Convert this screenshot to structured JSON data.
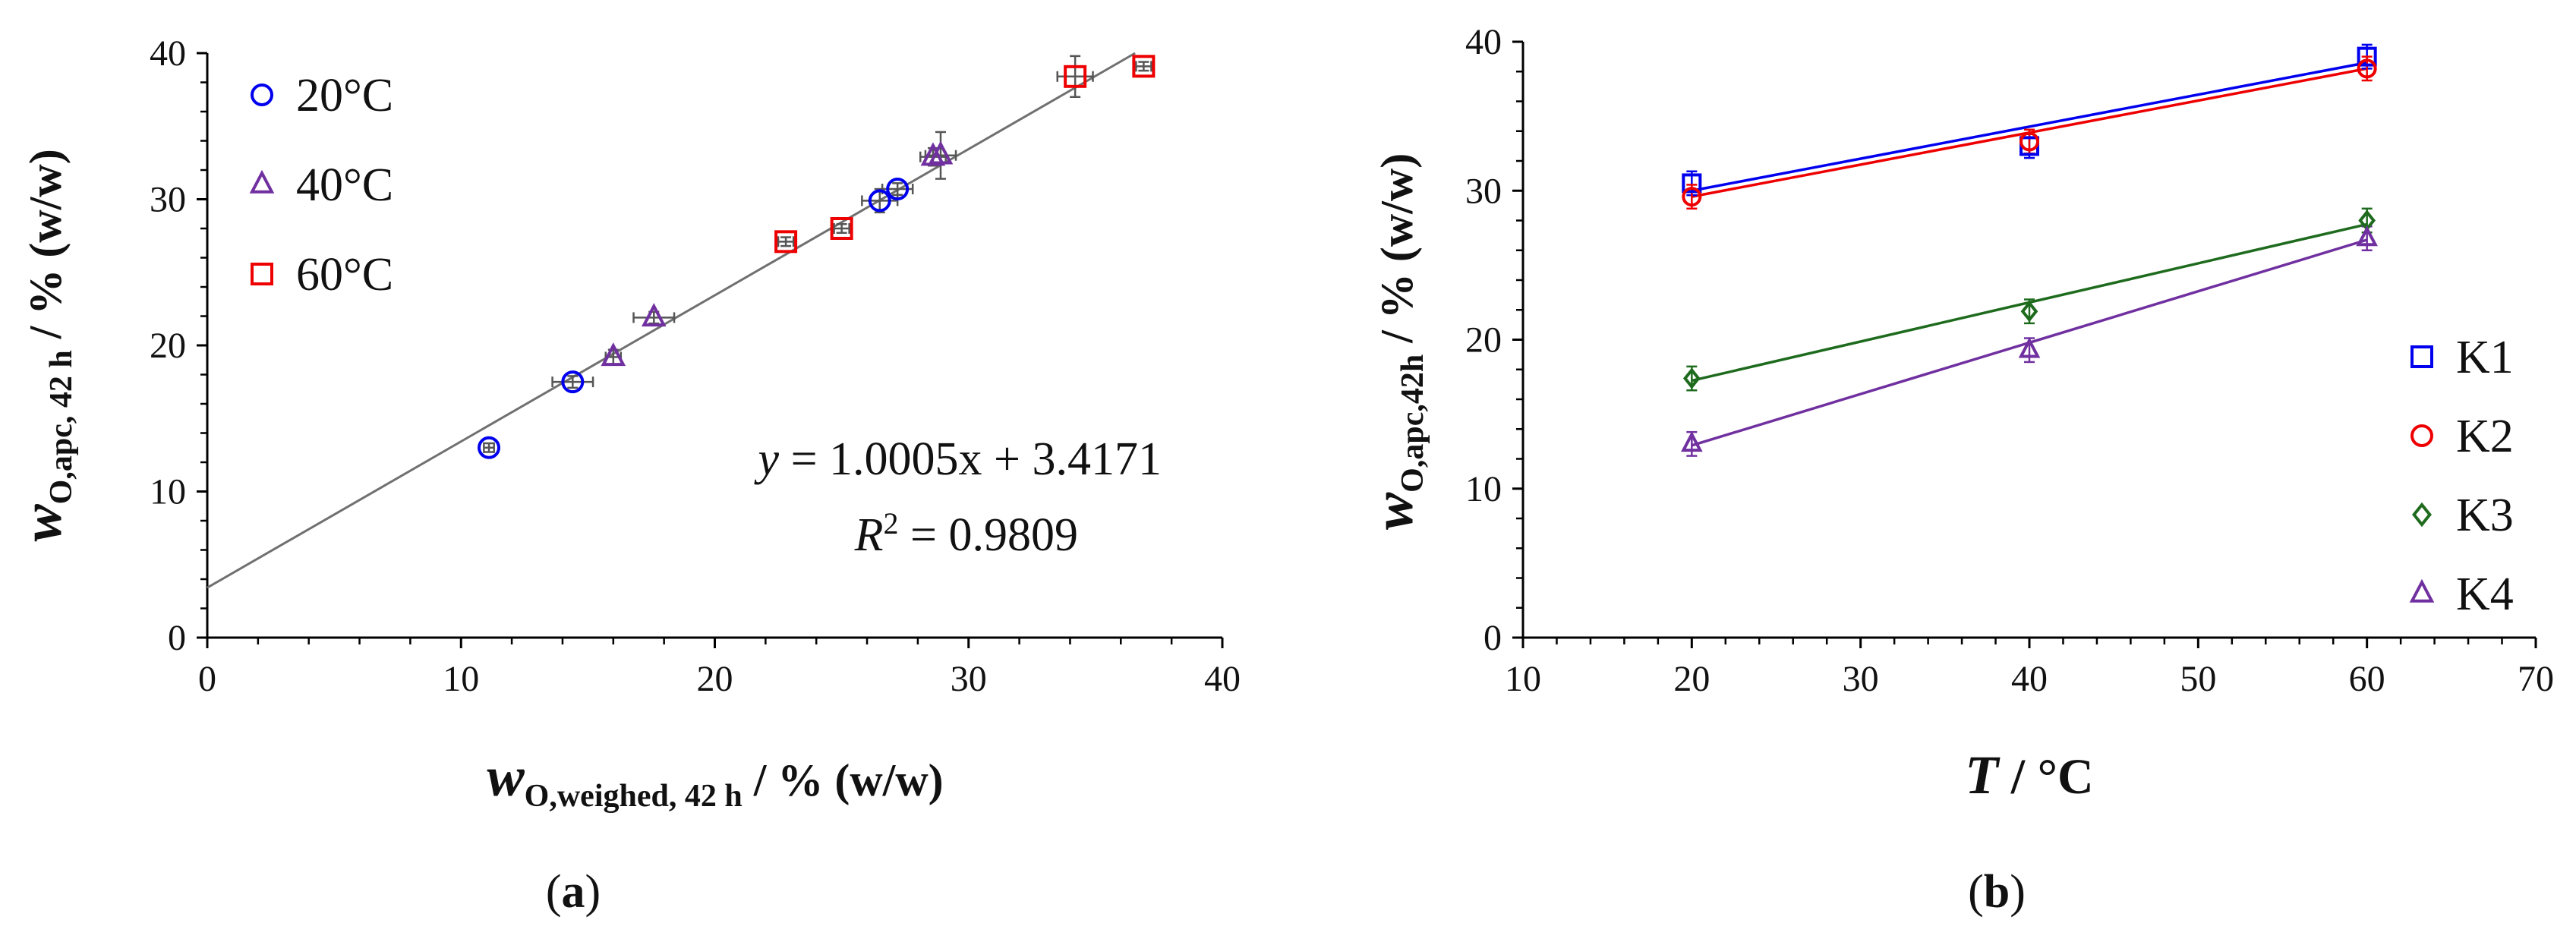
{
  "chart_data": [
    {
      "panel": "a",
      "panel_label": "a",
      "type": "scatter",
      "xlim": [
        0,
        40
      ],
      "ylim": [
        0,
        40
      ],
      "xticks": [
        0,
        10,
        20,
        30,
        40
      ],
      "yticks": [
        0,
        10,
        20,
        30,
        40
      ],
      "xlabel": {
        "var": "w",
        "sub": "O,weighed, 42 h",
        "unit": " / % (w/w)"
      },
      "ylabel": {
        "var": "w",
        "sub": "O,apc, 42 h",
        "unit": " / % (w/w)"
      },
      "series": [
        {
          "name": "20°C",
          "marker": "circle",
          "color": "#0000ee",
          "points": [
            {
              "x": 11.1,
              "y": 13.0,
              "xerr": 0.2,
              "yerr": 0.3
            },
            {
              "x": 14.4,
              "y": 17.5,
              "xerr": 0.8,
              "yerr": 0.4
            },
            {
              "x": 26.5,
              "y": 29.9,
              "xerr": 0.7,
              "yerr": 0.8
            },
            {
              "x": 27.2,
              "y": 30.7,
              "xerr": 0.6,
              "yerr": 0.4
            }
          ]
        },
        {
          "name": "40°C",
          "marker": "triangle",
          "color": "#7030a0",
          "points": [
            {
              "x": 16.0,
              "y": 19.2,
              "xerr": 0.3,
              "yerr": 0.5
            },
            {
              "x": 17.6,
              "y": 21.9,
              "xerr": 0.8,
              "yerr": 0.4
            },
            {
              "x": 28.6,
              "y": 32.9,
              "xerr": 0.5,
              "yerr": 0.6
            },
            {
              "x": 28.9,
              "y": 33.0,
              "xerr": 0.6,
              "yerr": 1.6
            }
          ]
        },
        {
          "name": "60°C",
          "marker": "square",
          "color": "#ee0000",
          "points": [
            {
              "x": 22.8,
              "y": 27.1,
              "xerr": 0.3,
              "yerr": 0.3
            },
            {
              "x": 25.0,
              "y": 28.0,
              "xerr": 0.3,
              "yerr": 0.3
            },
            {
              "x": 34.2,
              "y": 38.4,
              "xerr": 0.7,
              "yerr": 1.4
            },
            {
              "x": 36.9,
              "y": 39.1,
              "xerr": 0.3,
              "yerr": 0.3
            }
          ]
        }
      ],
      "fit": {
        "slope": 1.0005,
        "intercept": 3.4171,
        "x_range": [
          0,
          40
        ],
        "color": "#707070"
      },
      "equation": {
        "y_var": "y",
        "rest": " = 1.0005x + 3.4171",
        "r_var": "R",
        "r_sup": "2",
        "r_rest": " = 0.9809"
      }
    },
    {
      "panel": "b",
      "panel_label": "b",
      "type": "scatter",
      "xlim": [
        10,
        70
      ],
      "ylim": [
        0,
        40
      ],
      "xticks": [
        10,
        20,
        30,
        40,
        50,
        60,
        70
      ],
      "yticks": [
        0,
        10,
        20,
        30,
        40
      ],
      "xlabel": {
        "var": "T",
        "sub": "",
        "unit": " / °C"
      },
      "ylabel": {
        "var": "w",
        "sub": "O,apc,42h",
        "unit": " / % (w/w)"
      },
      "series": [
        {
          "name": "K1",
          "marker": "square",
          "color": "#0000ee",
          "points": [
            {
              "x": 20,
              "y": 30.5,
              "yerr": 0.8
            },
            {
              "x": 40,
              "y": 33.0,
              "yerr": 0.8
            },
            {
              "x": 60,
              "y": 39.0,
              "yerr": 0.8
            }
          ],
          "fit": {
            "slope": 0.215,
            "intercept": 25.7
          }
        },
        {
          "name": "K2",
          "marker": "circle",
          "color": "#ee0000",
          "points": [
            {
              "x": 20,
              "y": 29.6,
              "yerr": 0.8
            },
            {
              "x": 40,
              "y": 33.3,
              "yerr": 0.8
            },
            {
              "x": 60,
              "y": 38.2,
              "yerr": 0.8
            }
          ],
          "fit": {
            "slope": 0.215,
            "intercept": 25.3
          }
        },
        {
          "name": "K3",
          "marker": "diamond",
          "color": "#1e6b1e",
          "points": [
            {
              "x": 20,
              "y": 17.4,
              "yerr": 0.8
            },
            {
              "x": 40,
              "y": 21.9,
              "yerr": 0.8
            },
            {
              "x": 60,
              "y": 28.0,
              "yerr": 0.8
            }
          ],
          "fit": {
            "slope": 0.2625,
            "intercept": 12.0
          }
        },
        {
          "name": "K4",
          "marker": "triangle",
          "color": "#7030a0",
          "points": [
            {
              "x": 20,
              "y": 13.0,
              "yerr": 0.8
            },
            {
              "x": 40,
              "y": 19.3,
              "yerr": 0.8
            },
            {
              "x": 60,
              "y": 26.8,
              "yerr": 0.8
            }
          ],
          "fit": {
            "slope": 0.345,
            "intercept": 6.0
          }
        }
      ]
    }
  ]
}
